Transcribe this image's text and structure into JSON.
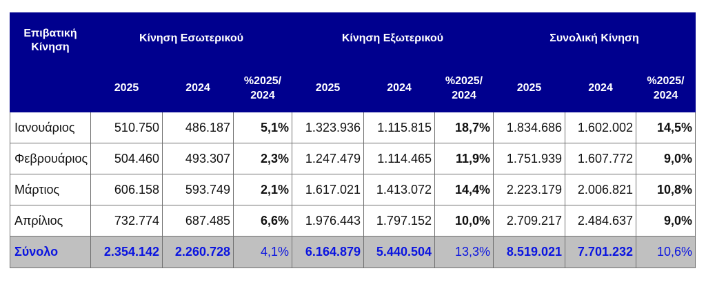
{
  "table": {
    "corner_label": "Επιβατική Κίνηση",
    "groups": [
      {
        "label": "Κίνηση Εσωτερικού"
      },
      {
        "label": "Κίνηση Εξωτερικού"
      },
      {
        "label": "Συνολική Κίνηση"
      }
    ],
    "subheaders": [
      "2025",
      "2024",
      "%2025/ 2024"
    ],
    "rows": [
      {
        "month": "Ιανουάριος",
        "values": [
          "510.750",
          "486.187",
          "5,1%",
          "1.323.936",
          "1.115.815",
          "18,7%",
          "1.834.686",
          "1.602.002",
          "14,5%"
        ]
      },
      {
        "month": "Φεβρουάριος",
        "values": [
          "504.460",
          "493.307",
          "2,3%",
          "1.247.479",
          "1.114.465",
          "11,9%",
          "1.751.939",
          "1.607.772",
          "9,0%"
        ]
      },
      {
        "month": "Μάρτιος",
        "values": [
          "606.158",
          "593.749",
          "2,1%",
          "1.617.021",
          "1.413.072",
          "14,4%",
          "2.223.179",
          "2.006.821",
          "10,8%"
        ]
      },
      {
        "month": "Απρίλιος",
        "values": [
          "732.774",
          "687.485",
          "6,6%",
          "1.976.443",
          "1.797.152",
          "10,0%",
          "2.709.217",
          "2.484.637",
          "9,0%"
        ]
      }
    ],
    "total": {
      "label": "Σύνολο",
      "values": [
        "2.354.142",
        "2.260.728",
        "4,1%",
        "6.164.879",
        "5.440.504",
        "13,3%",
        "8.519.021",
        "7.701.232",
        "10,6%"
      ]
    }
  },
  "colors": {
    "header_bg": "#00008e",
    "header_text": "#ffffff",
    "total_bg": "#c0c0c0",
    "total_text": "#0a14e0"
  }
}
